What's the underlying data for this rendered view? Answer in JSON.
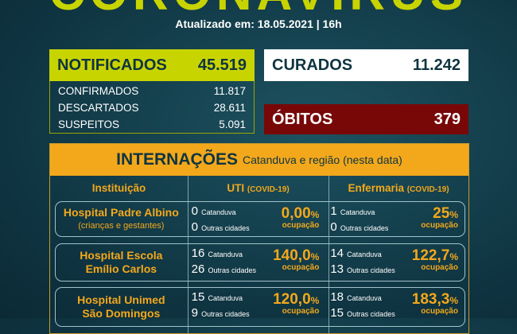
{
  "title": "CORONAVÍRUS",
  "updated": "Atualizado em: 18.05.2021 | 16h",
  "notificados": {
    "label": "NOTIFICADOS",
    "value": "45.519",
    "items": [
      {
        "label": "CONFIRMADOS",
        "value": "11.817"
      },
      {
        "label": "DESCARTADOS",
        "value": "28.611"
      },
      {
        "label": "SUSPEITOS",
        "value": "5.091"
      }
    ]
  },
  "curados": {
    "label": "CURADOS",
    "value": "11.242"
  },
  "obitos": {
    "label": "ÓBITOS",
    "value": "379"
  },
  "internacoes": {
    "title": "INTERNAÇÕES",
    "subtitle": "Catanduva e região (nesta data)",
    "headers": {
      "inst": "Instituição",
      "uti": "UTI",
      "enf": "Enfermaria",
      "covid": "(COVID-19)"
    },
    "occupancy_label": "ocupação",
    "local": "Catanduva",
    "other": "Outras cidades",
    "rows": [
      {
        "name": "Hospital Padre Albino",
        "note": "(crianças e gestantes)",
        "uti": {
          "local": "0",
          "other": "0",
          "pct": "0,00"
        },
        "enf": {
          "local": "1",
          "other": "0",
          "pct": "25"
        }
      },
      {
        "name": "Hospital Escola",
        "note": "Emílio Carlos",
        "uti": {
          "local": "16",
          "other": "26",
          "pct": "140,0"
        },
        "enf": {
          "local": "14",
          "other": "13",
          "pct": "122,7"
        }
      },
      {
        "name": "Hospital Unimed",
        "note": "São Domingos",
        "uti": {
          "local": "15",
          "other": "9",
          "pct": "120,0"
        },
        "enf": {
          "local": "18",
          "other": "15",
          "pct": "183,3"
        }
      }
    ]
  }
}
